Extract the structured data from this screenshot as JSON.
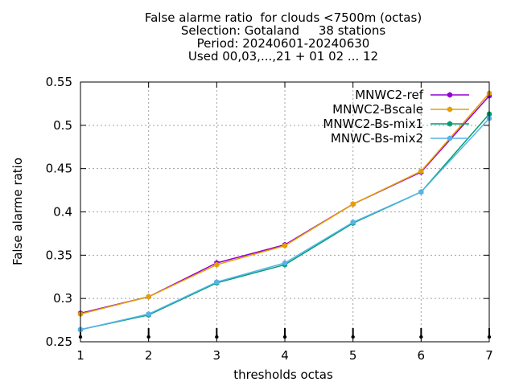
{
  "chart_data": {
    "type": "line",
    "title_lines": [
      "False alarme ratio  for clouds <7500m (octas)",
      "Selection: Gotaland     38 stations",
      "Period: 20240601-20240630",
      "Used 00,03,...,21 + 01 02 ... 12"
    ],
    "xlabel": "thresholds octas",
    "ylabel": "False alarme ratio",
    "x": [
      1,
      2,
      3,
      4,
      5,
      6,
      7
    ],
    "xlim": [
      1,
      7
    ],
    "ylim": [
      0.25,
      0.55
    ],
    "yticks": [
      "0.25",
      "0.3",
      "0.35",
      "0.4",
      "0.45",
      "0.5",
      "0.55"
    ],
    "xticks": [
      "1",
      "2",
      "3",
      "4",
      "5",
      "6",
      "7"
    ],
    "grid": true,
    "legend_position": "top-right",
    "series": [
      {
        "name": "MNWC2-ref",
        "color": "#9400d3",
        "values": [
          0.283,
          0.302,
          0.341,
          0.362,
          0.409,
          0.446,
          0.534
        ]
      },
      {
        "name": "MNWC2-Bscale",
        "color": "#e69f00",
        "values": [
          0.282,
          0.302,
          0.339,
          0.361,
          0.409,
          0.447,
          0.537
        ]
      },
      {
        "name": "MNWC2-Bs-mix1",
        "color": "#009e73",
        "values": [
          0.264,
          0.281,
          0.318,
          0.339,
          0.387,
          0.423,
          0.513
        ]
      },
      {
        "name": "MNWC-Bs-mix2",
        "color": "#56b4e9",
        "values": [
          0.264,
          0.282,
          0.319,
          0.341,
          0.388,
          0.423,
          0.508
        ]
      }
    ]
  }
}
